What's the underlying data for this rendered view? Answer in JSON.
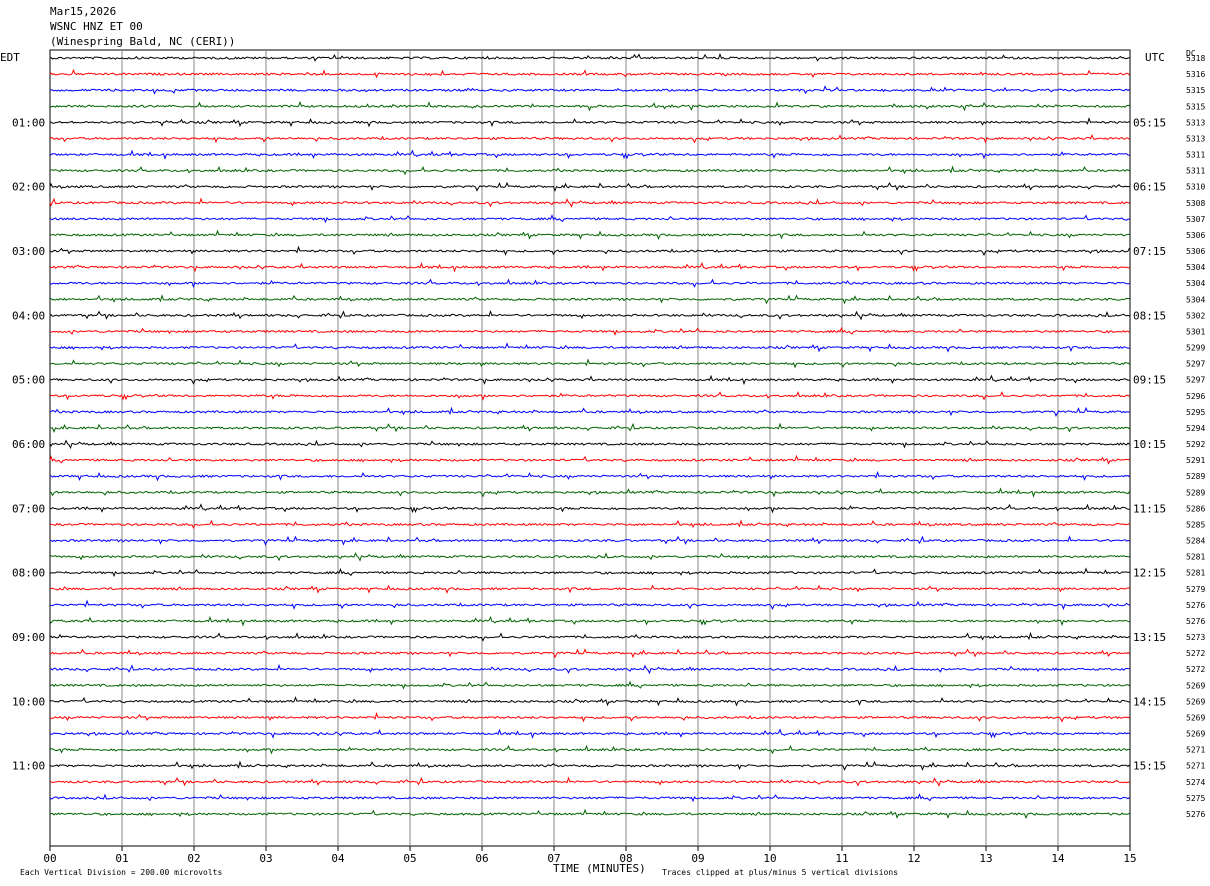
{
  "header": {
    "date": "Mar15,2026",
    "station": "WSNC HNZ ET 00",
    "location": "(Winespring Bald, NC (CERI))"
  },
  "left_tz": "EDT",
  "right_tz": "UTC",
  "dc_label": "DC",
  "xlabel": "TIME (MINUTES)",
  "footer_left": "Each Vertical Division =  200.00 microvolts",
  "footer_right": "Traces clipped at plus/minus 5 vertical divisions",
  "colors": {
    "black": "#000000",
    "red": "#ff0000",
    "blue": "#0000ff",
    "green": "#006400",
    "grid": "#888888"
  },
  "chart_data": {
    "type": "line",
    "title": "WSNC HNZ ET 00",
    "x_ticks": [
      "00",
      "01",
      "02",
      "03",
      "04",
      "05",
      "06",
      "07",
      "08",
      "09",
      "10",
      "11",
      "12",
      "13",
      "14",
      "15"
    ],
    "xlim": [
      0,
      15
    ],
    "traces_per_hour": 4,
    "trace_colors": [
      "#000000",
      "#ff0000",
      "#0000ff",
      "#006400"
    ],
    "left_hour_labels": [
      "01:00",
      "02:00",
      "03:00",
      "04:00",
      "05:00",
      "06:00",
      "07:00",
      "08:00",
      "09:00",
      "10:00",
      "11:00"
    ],
    "right_hour_labels": [
      "05:15",
      "06:15",
      "07:15",
      "08:15",
      "09:15",
      "10:15",
      "11:15",
      "12:15",
      "13:15",
      "14:15",
      "15:15"
    ],
    "dc_values": [
      "5318",
      "5316",
      "5315",
      "5315",
      "5313",
      "5313",
      "5311",
      "5311",
      "5310",
      "5308",
      "5307",
      "5306",
      "5306",
      "5304",
      "5304",
      "5304",
      "5302",
      "5301",
      "5299",
      "5297",
      "5297",
      "5296",
      "5295",
      "5294",
      "5292",
      "5291",
      "5289",
      "5289",
      "5286",
      "5285",
      "5284",
      "5281",
      "5281",
      "5279",
      "5276",
      "5276",
      "5273",
      "5272",
      "5272",
      "5269",
      "5269",
      "5269",
      "5269",
      "5271",
      "5271",
      "5274",
      "5275",
      "5276"
    ]
  }
}
